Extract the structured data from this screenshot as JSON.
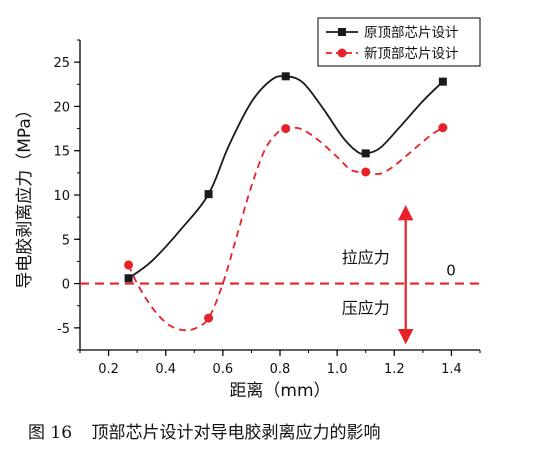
{
  "chart_data": {
    "type": "line",
    "xlabel": "距离（mm）",
    "ylabel": "导电胶剥离应力（MPa）",
    "xlim": [
      0.1,
      1.5
    ],
    "ylim": [
      -7.5,
      27.5
    ],
    "x_ticks": [
      0.2,
      0.4,
      0.6,
      0.8,
      1.0,
      1.2,
      1.4
    ],
    "x_tick_labels": [
      "0.2",
      "0.4",
      "0.6",
      "0.8",
      "1.0",
      "1.2",
      "1.4"
    ],
    "y_ticks": [
      -5,
      0,
      5,
      10,
      15,
      20,
      25
    ],
    "y_tick_labels": [
      "-5",
      "0",
      "5",
      "10",
      "15",
      "20",
      "25"
    ],
    "legend_position": "top-right",
    "series": [
      {
        "name": "原顶部芯片设计",
        "color": "#1a1a1a",
        "marker": "square",
        "line_style": "solid",
        "x": [
          0.27,
          0.55,
          0.82,
          1.1,
          1.37
        ],
        "y": [
          0.6,
          10.1,
          23.4,
          14.7,
          22.8
        ],
        "curve": [
          [
            0.27,
            0.6
          ],
          [
            0.35,
            2.5
          ],
          [
            0.45,
            6.0
          ],
          [
            0.55,
            10.1
          ],
          [
            0.62,
            15.5
          ],
          [
            0.7,
            20.5
          ],
          [
            0.77,
            23.0
          ],
          [
            0.82,
            23.4
          ],
          [
            0.88,
            22.7
          ],
          [
            0.95,
            19.8
          ],
          [
            1.02,
            16.5
          ],
          [
            1.07,
            14.9
          ],
          [
            1.1,
            14.7
          ],
          [
            1.15,
            15.3
          ],
          [
            1.22,
            17.7
          ],
          [
            1.3,
            20.6
          ],
          [
            1.37,
            22.8
          ]
        ]
      },
      {
        "name": "新顶部芯片设计",
        "color": "#e8202a",
        "marker": "circle",
        "line_style": "dashed",
        "x": [
          0.27,
          0.55,
          0.82,
          1.1,
          1.37
        ],
        "y": [
          2.1,
          -3.9,
          17.5,
          12.6,
          17.6
        ],
        "curve": [
          [
            0.27,
            2.1
          ],
          [
            0.3,
            0.0
          ],
          [
            0.35,
            -2.6
          ],
          [
            0.4,
            -4.4
          ],
          [
            0.45,
            -5.2
          ],
          [
            0.5,
            -5.1
          ],
          [
            0.55,
            -3.9
          ],
          [
            0.6,
            0.0
          ],
          [
            0.65,
            5.5
          ],
          [
            0.7,
            11.0
          ],
          [
            0.75,
            15.3
          ],
          [
            0.8,
            17.3
          ],
          [
            0.82,
            17.5
          ],
          [
            0.87,
            17.5
          ],
          [
            0.93,
            16.3
          ],
          [
            1.0,
            14.3
          ],
          [
            1.05,
            12.8
          ],
          [
            1.1,
            12.6
          ],
          [
            1.15,
            12.4
          ],
          [
            1.2,
            13.3
          ],
          [
            1.27,
            15.2
          ],
          [
            1.33,
            16.8
          ],
          [
            1.37,
            17.6
          ]
        ]
      }
    ],
    "reference_line": {
      "y": 0,
      "color": "#e8202a",
      "style": "dashed",
      "label": "0"
    },
    "annotations": {
      "arrow_color": "#e8202a",
      "arrow_x": 1.24,
      "arrow_y_top": 8.0,
      "arrow_y_bottom": -6.0,
      "tensile_label": "拉应力",
      "tensile_at": [
        1.1,
        3.0
      ],
      "compressive_label": "压应力",
      "compressive_at": [
        1.1,
        -2.7
      ]
    }
  },
  "caption": {
    "figure_number": "图 16",
    "text": "顶部芯片设计对导电胶剥离应力的影响"
  }
}
